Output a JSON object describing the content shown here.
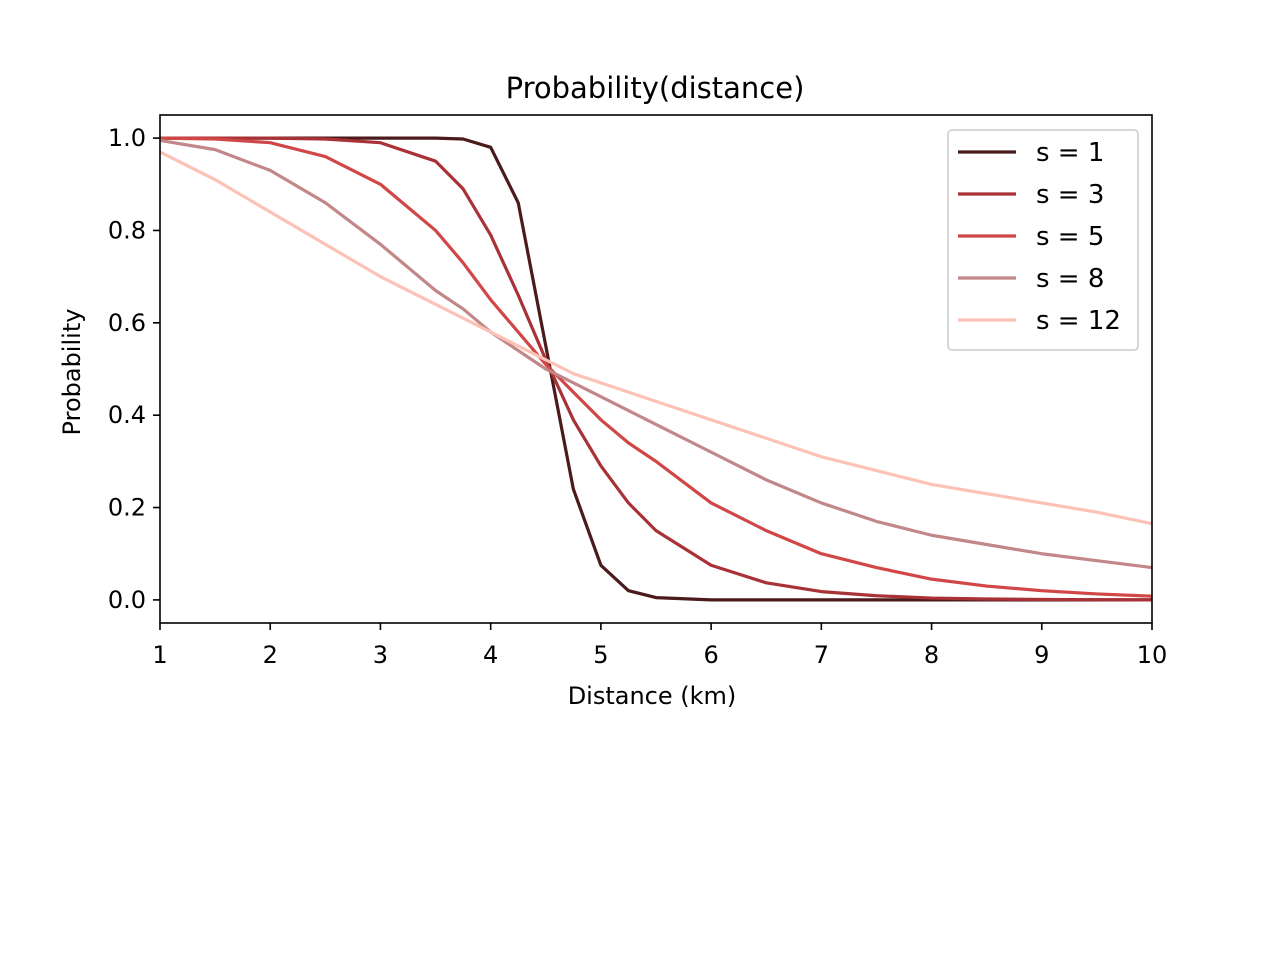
{
  "chart_data": {
    "type": "line",
    "title": "Probability(distance)",
    "xlabel": "Distance (km)",
    "ylabel": "Probability",
    "xlim": [
      1,
      10
    ],
    "ylim": [
      -0.05,
      1.05
    ],
    "xticks": [
      1,
      2,
      3,
      4,
      5,
      6,
      7,
      8,
      9,
      10
    ],
    "xtick_labels": [
      "1",
      "2",
      "3",
      "4",
      "5",
      "6",
      "7",
      "8",
      "9",
      "10"
    ],
    "yticks": [
      0.0,
      0.2,
      0.4,
      0.6,
      0.8,
      1.0
    ],
    "ytick_labels": [
      "0.0",
      "0.2",
      "0.4",
      "0.6",
      "0.8",
      "1.0"
    ],
    "grid": false,
    "legend_position": "top-right",
    "x": [
      1,
      1.5,
      2,
      2.5,
      3,
      3.5,
      3.75,
      4,
      4.25,
      4.5,
      4.75,
      5,
      5.25,
      5.5,
      6,
      6.5,
      7,
      7.5,
      8,
      8.5,
      9,
      9.5,
      10
    ],
    "series": [
      {
        "name": "s = 1",
        "color": "#4a1a1c",
        "values": [
          1.0,
          1.0,
          1.0,
          1.0,
          1.0,
          1.0,
          0.998,
          0.98,
          0.86,
          0.55,
          0.24,
          0.075,
          0.02,
          0.005,
          0.0,
          0.0,
          0.0,
          0.0,
          0.0,
          0.0,
          0.0,
          0.0,
          0.0
        ]
      },
      {
        "name": "s = 3",
        "color": "#a83236",
        "values": [
          1.0,
          1.0,
          1.0,
          0.998,
          0.99,
          0.95,
          0.89,
          0.79,
          0.66,
          0.52,
          0.39,
          0.29,
          0.21,
          0.15,
          0.075,
          0.037,
          0.018,
          0.009,
          0.004,
          0.002,
          0.001,
          0.0005,
          0.0
        ]
      },
      {
        "name": "s = 5",
        "color": "#d14646",
        "values": [
          1.0,
          0.998,
          0.99,
          0.96,
          0.9,
          0.8,
          0.73,
          0.65,
          0.58,
          0.51,
          0.45,
          0.39,
          0.34,
          0.3,
          0.21,
          0.15,
          0.1,
          0.07,
          0.045,
          0.03,
          0.02,
          0.013,
          0.008
        ]
      },
      {
        "name": "s = 8",
        "color": "#c28788",
        "values": [
          0.995,
          0.975,
          0.93,
          0.86,
          0.77,
          0.67,
          0.63,
          0.58,
          0.54,
          0.5,
          0.47,
          0.44,
          0.41,
          0.38,
          0.32,
          0.26,
          0.21,
          0.17,
          0.14,
          0.12,
          0.1,
          0.085,
          0.07
        ]
      },
      {
        "name": "s = 12",
        "color": "#fcc2b6",
        "values": [
          0.97,
          0.91,
          0.84,
          0.77,
          0.7,
          0.64,
          0.61,
          0.58,
          0.55,
          0.52,
          0.49,
          0.47,
          0.45,
          0.43,
          0.39,
          0.35,
          0.31,
          0.28,
          0.25,
          0.23,
          0.21,
          0.19,
          0.165
        ]
      }
    ]
  }
}
